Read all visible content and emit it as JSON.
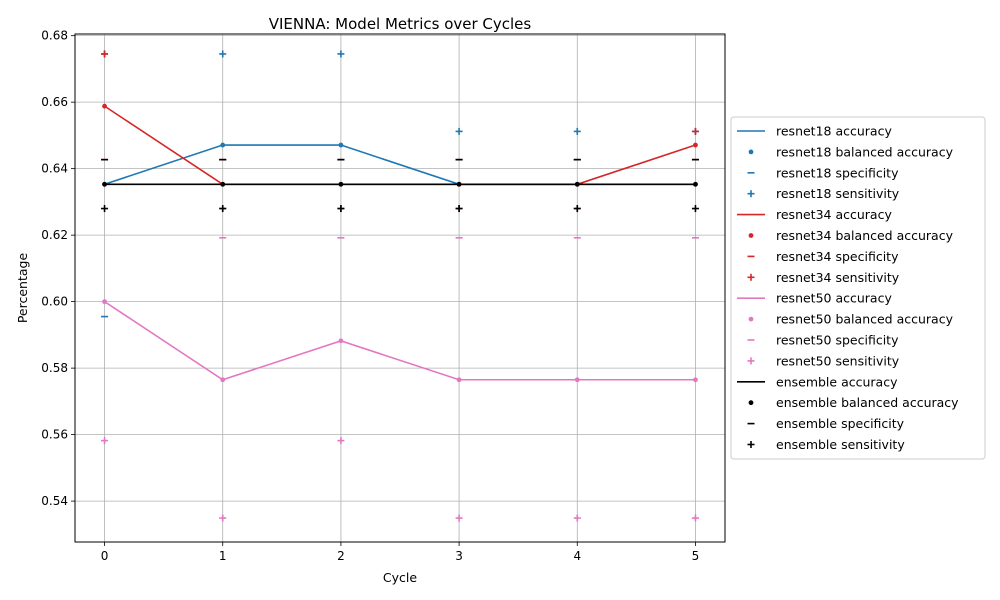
{
  "chart_data": {
    "type": "line",
    "title": "VIENNA: Model Metrics over Cycles",
    "xlabel": "Cycle",
    "ylabel": "Percentage",
    "x": [
      0,
      1,
      2,
      3,
      4,
      5
    ],
    "xlim": [
      -0.25,
      5.25
    ],
    "ylim": [
      0.5277,
      0.6805
    ],
    "xticks": [
      "0",
      "1",
      "2",
      "3",
      "4",
      "5"
    ],
    "yticks": [
      "0.54",
      "0.56",
      "0.58",
      "0.60",
      "0.62",
      "0.64",
      "0.66",
      "0.68"
    ],
    "ytick_values": [
      0.54,
      0.56,
      0.58,
      0.6,
      0.62,
      0.64,
      0.66,
      0.68
    ],
    "grid": true,
    "legend_position": "right-outside",
    "models": [
      {
        "model": "resnet18",
        "color": "#1f77b4",
        "accuracy": [
          0.6353,
          0.6471,
          0.6471,
          0.6353,
          0.6353,
          0.6353
        ],
        "balanced_accuracy": [
          0.6353,
          0.6471,
          0.6471,
          0.6353,
          0.6353,
          0.6353
        ],
        "specificity": [
          0.5955,
          0.6427,
          0.6427,
          0.6427,
          0.6427,
          0.6427
        ],
        "sensitivity": [
          0.6745,
          0.6745,
          0.6745,
          0.6512,
          0.6512,
          0.6512
        ]
      },
      {
        "model": "resnet34",
        "color": "#d62728",
        "accuracy": [
          0.6588,
          0.6353,
          0.6353,
          0.6353,
          0.6353,
          0.6471
        ],
        "balanced_accuracy": [
          0.6588,
          0.6353,
          0.6353,
          0.6353,
          0.6353,
          0.6471
        ],
        "specificity": [
          0.6427,
          0.6427,
          0.6427,
          0.6427,
          0.6427,
          0.6427
        ],
        "sensitivity": [
          0.6745,
          0.628,
          0.628,
          0.628,
          0.628,
          0.6512
        ]
      },
      {
        "model": "resnet50",
        "color": "#e377c2",
        "accuracy": [
          0.6,
          0.5765,
          0.5882,
          0.5765,
          0.5765,
          0.5765
        ],
        "balanced_accuracy": [
          0.6,
          0.5765,
          0.5882,
          0.5765,
          0.5765,
          0.5765
        ],
        "specificity": [
          0.6427,
          0.6192,
          0.6192,
          0.6192,
          0.6192,
          0.6192
        ],
        "sensitivity": [
          0.5582,
          0.5349,
          0.5582,
          0.5349,
          0.5349,
          0.5349
        ]
      },
      {
        "model": "ensemble",
        "color": "#000000",
        "accuracy": [
          0.6353,
          0.6353,
          0.6353,
          0.6353,
          0.6353,
          0.6353
        ],
        "balanced_accuracy": [
          0.6353,
          0.6353,
          0.6353,
          0.6353,
          0.6353,
          0.6353
        ],
        "specificity": [
          0.6427,
          0.6427,
          0.6427,
          0.6427,
          0.6427,
          0.6427
        ],
        "sensitivity": [
          0.628,
          0.628,
          0.628,
          0.628,
          0.628,
          0.628
        ]
      }
    ],
    "legend": [
      {
        "label": "resnet18 accuracy",
        "model": 0,
        "marker": "line"
      },
      {
        "label": "resnet18 balanced accuracy",
        "model": 0,
        "marker": "dot"
      },
      {
        "label": "resnet18 specificity",
        "model": 0,
        "marker": "dash"
      },
      {
        "label": "resnet18 sensitivity",
        "model": 0,
        "marker": "plus"
      },
      {
        "label": "resnet34 accuracy",
        "model": 1,
        "marker": "line"
      },
      {
        "label": "resnet34 balanced accuracy",
        "model": 1,
        "marker": "dot"
      },
      {
        "label": "resnet34 specificity",
        "model": 1,
        "marker": "dash"
      },
      {
        "label": "resnet34 sensitivity",
        "model": 1,
        "marker": "plus"
      },
      {
        "label": "resnet50 accuracy",
        "model": 2,
        "marker": "line"
      },
      {
        "label": "resnet50 balanced accuracy",
        "model": 2,
        "marker": "dot"
      },
      {
        "label": "resnet50 specificity",
        "model": 2,
        "marker": "dash"
      },
      {
        "label": "resnet50 sensitivity",
        "model": 2,
        "marker": "plus"
      },
      {
        "label": "ensemble accuracy",
        "model": 3,
        "marker": "line"
      },
      {
        "label": "ensemble balanced accuracy",
        "model": 3,
        "marker": "dot"
      },
      {
        "label": "ensemble specificity",
        "model": 3,
        "marker": "dash"
      },
      {
        "label": "ensemble sensitivity",
        "model": 3,
        "marker": "plus"
      }
    ]
  }
}
